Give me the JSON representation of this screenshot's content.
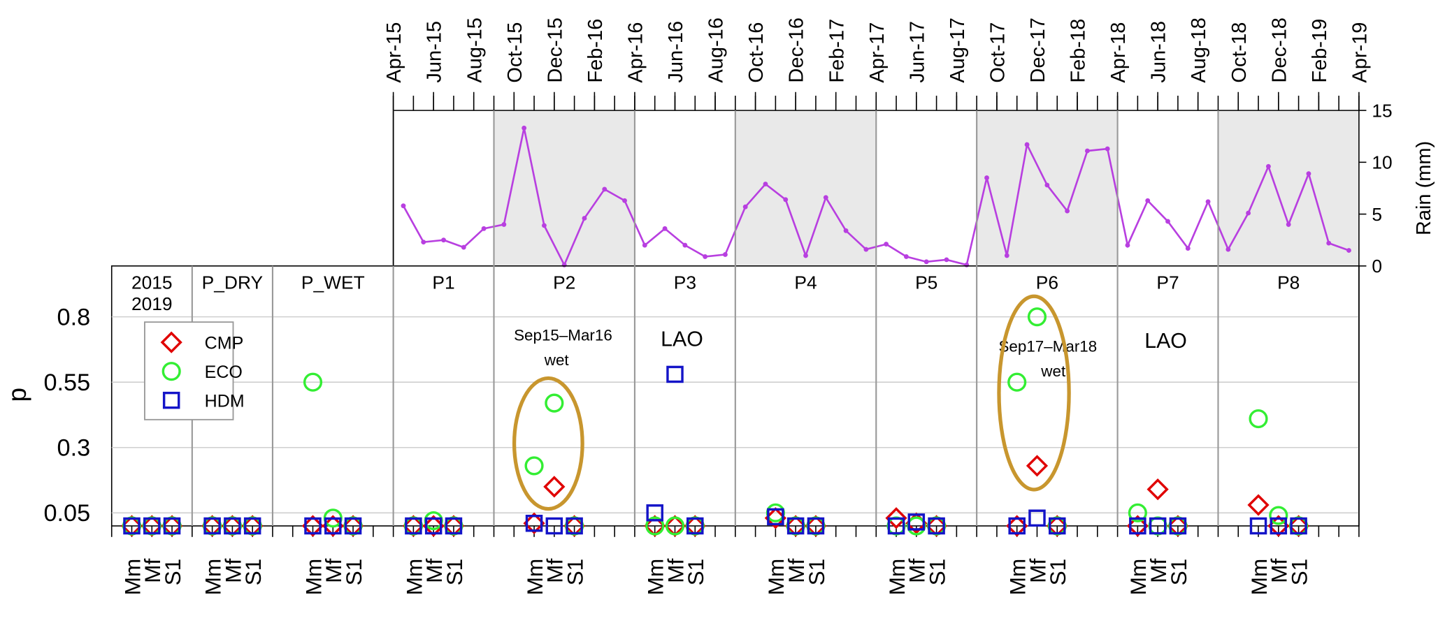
{
  "chart_data": [
    {
      "type": "line",
      "ylabel": "Rain (mm)",
      "color": "#b83fe0",
      "x": [
        "2015-04",
        "2015-05",
        "2015-06",
        "2015-07",
        "2015-08",
        "2015-09",
        "2015-10",
        "2015-11",
        "2015-12",
        "2016-01",
        "2016-02",
        "2016-03",
        "2016-04",
        "2016-05",
        "2016-06",
        "2016-07",
        "2016-08",
        "2016-09",
        "2016-10",
        "2016-11",
        "2016-12",
        "2017-01",
        "2017-02",
        "2017-03",
        "2017-04",
        "2017-05",
        "2017-06",
        "2017-07",
        "2017-08",
        "2017-09",
        "2017-10",
        "2017-11",
        "2017-12",
        "2018-01",
        "2018-02",
        "2018-03",
        "2018-04",
        "2018-05",
        "2018-06",
        "2018-07",
        "2018-08",
        "2018-09",
        "2018-10",
        "2018-11",
        "2018-12",
        "2019-01",
        "2019-02",
        "2019-03"
      ],
      "values": [
        5.8,
        2.3,
        2.5,
        1.8,
        3.6,
        4.0,
        13.3,
        3.9,
        0.1,
        4.6,
        7.4,
        6.3,
        2.0,
        3.6,
        2.0,
        0.9,
        1.1,
        5.7,
        7.9,
        6.4,
        1.0,
        6.6,
        3.4,
        1.6,
        2.1,
        0.9,
        0.4,
        0.6,
        0.1,
        8.5,
        1.0,
        11.7,
        7.8,
        5.3,
        11.1,
        11.3,
        2.0,
        6.3,
        4.3,
        1.7,
        6.2,
        1.6,
        5.1,
        9.6,
        4.0,
        8.9,
        2.2,
        1.5
      ],
      "xlim": [
        "2015-04",
        "2019-04"
      ],
      "xticks": [
        {
          "value": "2015-04",
          "label": "Apr-15"
        },
        {
          "value": "2015-06",
          "label": "Jun-15"
        },
        {
          "value": "2015-08",
          "label": "Aug-15"
        },
        {
          "value": "2015-10",
          "label": "Oct-15"
        },
        {
          "value": "2015-12",
          "label": "Dec-15"
        },
        {
          "value": "2016-02",
          "label": "Feb-16"
        },
        {
          "value": "2016-04",
          "label": "Apr-16"
        },
        {
          "value": "2016-06",
          "label": "Jun-16"
        },
        {
          "value": "2016-08",
          "label": "Aug-16"
        },
        {
          "value": "2016-10",
          "label": "Oct-16"
        },
        {
          "value": "2016-12",
          "label": "Dec-16"
        },
        {
          "value": "2017-02",
          "label": "Feb-17"
        },
        {
          "value": "2017-04",
          "label": "Apr-17"
        },
        {
          "value": "2017-06",
          "label": "Jun-17"
        },
        {
          "value": "2017-08",
          "label": "Aug-17"
        },
        {
          "value": "2017-10",
          "label": "Oct-17"
        },
        {
          "value": "2017-12",
          "label": "Dec-17"
        },
        {
          "value": "2018-02",
          "label": "Feb-18"
        },
        {
          "value": "2018-04",
          "label": "Apr-18"
        },
        {
          "value": "2018-06",
          "label": "Jun-18"
        },
        {
          "value": "2018-08",
          "label": "Aug-18"
        },
        {
          "value": "2018-10",
          "label": "Oct-18"
        },
        {
          "value": "2018-12",
          "label": "Dec-18"
        },
        {
          "value": "2019-02",
          "label": "Feb-19"
        },
        {
          "value": "2019-04",
          "label": "Apr-19"
        }
      ],
      "ylim": [
        0,
        15
      ],
      "yticks": [
        0,
        5,
        10,
        15
      ],
      "shaded_periods": [
        [
          "2015-09",
          "2016-04"
        ],
        [
          "2016-09",
          "2017-04"
        ],
        [
          "2017-09",
          "2018-04"
        ],
        [
          "2018-09",
          "2019-04"
        ]
      ]
    },
    {
      "type": "scatter",
      "ylabel": "p",
      "ylim": [
        0,
        1
      ],
      "yticks": [
        0.05,
        0.3,
        0.55,
        0.8
      ],
      "grid": true,
      "legend": true,
      "panels": [
        {
          "lines": [
            "2015",
            "2019"
          ]
        },
        {
          "lines": [
            "P_DRY"
          ]
        },
        {
          "lines": [
            "P_WET"
          ]
        },
        {
          "lines": [
            "P1"
          ]
        },
        {
          "lines": [
            "P2"
          ]
        },
        {
          "lines": [
            "P3"
          ]
        },
        {
          "lines": [
            "P4"
          ]
        },
        {
          "lines": [
            "P5"
          ]
        },
        {
          "lines": [
            "P6"
          ]
        },
        {
          "lines": [
            "P7"
          ]
        },
        {
          "lines": [
            "P8"
          ]
        }
      ],
      "categories": [
        "Mm",
        "Mf",
        "S1",
        "Mm",
        "Mf",
        "S1",
        "Mm",
        "Mf",
        "S1",
        "Mm",
        "Mf",
        "S1",
        "Mm",
        "Mf",
        "S1",
        "Mm",
        "Mf",
        "S1",
        "Mm",
        "Mf",
        "S1",
        "Mm",
        "Mf",
        "S1",
        "Mm",
        "Mf",
        "S1",
        "Mm",
        "Mf",
        "S1",
        "Mm",
        "Mf",
        "S1"
      ],
      "series": [
        {
          "name": "CMP",
          "color": "#e00000",
          "marker": "diamond",
          "values": [
            0,
            0,
            0,
            0,
            0,
            0,
            0,
            0,
            0,
            0,
            0,
            0,
            0.01,
            0.15,
            0,
            0,
            0,
            0,
            0.03,
            0,
            0,
            0.03,
            0.01,
            0,
            0,
            0.23,
            0,
            0,
            0.14,
            0,
            0.08,
            0,
            0
          ]
        },
        {
          "name": "ECO",
          "color": "#33ee33",
          "marker": "circle",
          "values": [
            0,
            0,
            0,
            0,
            0,
            0,
            0.55,
            0.03,
            0,
            0,
            0.02,
            0,
            0.23,
            0.47,
            0,
            0,
            0,
            0,
            0.05,
            0,
            0,
            0,
            0,
            0,
            0.55,
            0.8,
            0,
            0.05,
            0,
            0,
            0.41,
            0.04,
            0
          ]
        },
        {
          "name": "HDM",
          "color": "#1414c8",
          "marker": "square",
          "values": [
            0,
            0,
            0,
            0,
            0,
            0,
            0,
            0,
            0,
            0,
            0,
            0,
            0.01,
            0,
            0,
            0.05,
            0.58,
            0,
            0.035,
            0,
            0,
            0,
            0.015,
            0,
            0,
            0.03,
            0,
            0,
            0,
            0,
            0,
            0,
            0
          ]
        }
      ],
      "annotations": [
        "Sep15–Mar16",
        "wet",
        "LAO",
        "Sep17–Mar18",
        "wet",
        "LAO"
      ]
    }
  ]
}
